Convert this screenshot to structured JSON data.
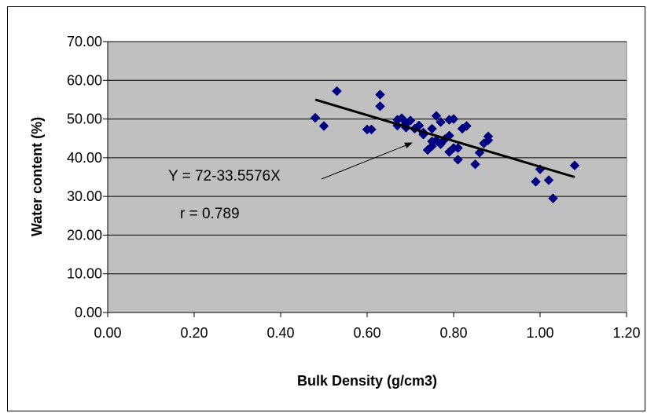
{
  "colors": {
    "plot_bg": "#c0c0c0",
    "point": "#000080",
    "line": "#000000",
    "grid": "#000000"
  },
  "chart_data": {
    "type": "scatter",
    "title": "",
    "xlabel": "Bulk Density (g/cm3)",
    "ylabel": "Water content (%)",
    "xlim": [
      0.0,
      1.2
    ],
    "ylim": [
      0.0,
      70.0
    ],
    "x_ticks": [
      "0.00",
      "0.20",
      "0.40",
      "0.60",
      "0.80",
      "1.00",
      "1.20"
    ],
    "y_ticks": [
      "0.00",
      "10.00",
      "20.00",
      "30.00",
      "40.00",
      "50.00",
      "60.00",
      "70.00"
    ],
    "grid": "horizontal",
    "marker": "diamond",
    "points": [
      [
        0.48,
        50.3
      ],
      [
        0.5,
        48.2
      ],
      [
        0.53,
        57.2
      ],
      [
        0.6,
        47.3
      ],
      [
        0.61,
        47.3
      ],
      [
        0.63,
        56.3
      ],
      [
        0.63,
        53.3
      ],
      [
        0.67,
        48.3
      ],
      [
        0.67,
        49.8
      ],
      [
        0.68,
        50.2
      ],
      [
        0.69,
        47.8
      ],
      [
        0.69,
        48.8
      ],
      [
        0.7,
        49.6
      ],
      [
        0.71,
        47.5
      ],
      [
        0.72,
        48.3
      ],
      [
        0.73,
        46.5
      ],
      [
        0.73,
        46.0
      ],
      [
        0.74,
        42.0
      ],
      [
        0.75,
        43.0
      ],
      [
        0.75,
        44.2
      ],
      [
        0.75,
        47.5
      ],
      [
        0.76,
        44.5
      ],
      [
        0.76,
        50.8
      ],
      [
        0.77,
        49.2
      ],
      [
        0.77,
        43.5
      ],
      [
        0.78,
        44.8
      ],
      [
        0.79,
        49.8
      ],
      [
        0.79,
        41.5
      ],
      [
        0.79,
        45.7
      ],
      [
        0.8,
        50.0
      ],
      [
        0.8,
        42.5
      ],
      [
        0.81,
        39.5
      ],
      [
        0.81,
        42.5
      ],
      [
        0.82,
        47.5
      ],
      [
        0.83,
        48.2
      ],
      [
        0.85,
        38.3
      ],
      [
        0.86,
        41.3
      ],
      [
        0.87,
        43.7
      ],
      [
        0.88,
        44.5
      ],
      [
        0.88,
        45.5
      ],
      [
        0.99,
        33.8
      ],
      [
        1.0,
        37.0
      ],
      [
        1.02,
        34.2
      ],
      [
        1.03,
        29.5
      ],
      [
        1.08,
        38.0
      ]
    ],
    "trendline": {
      "points": [
        [
          0.48,
          55.0
        ],
        [
          0.9,
          41.0
        ],
        [
          1.08,
          35.0
        ]
      ]
    },
    "annotations": {
      "equation": "Y = 72-33.5576X",
      "r_value": "r = 0.789"
    }
  }
}
